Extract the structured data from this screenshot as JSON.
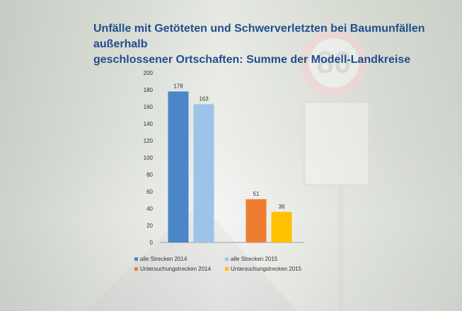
{
  "title": {
    "line1": "Unfälle mit Getöteten und Schwerverletzten bei Baumunfällen außerhalb",
    "line2": "geschlossener Ortschaften: Summe der Modell-Landkreise"
  },
  "sign_text": "80",
  "chart_data": {
    "type": "bar",
    "title": "Unfälle mit Getöteten und Schwerverletzten bei Baumunfällen außerhalb geschlossener Ortschaften: Summe der Modell-Landkreise",
    "ylim": [
      0,
      200
    ],
    "yticks": [
      0,
      20,
      40,
      60,
      80,
      100,
      120,
      140,
      160,
      180,
      200
    ],
    "grid": false,
    "legend_position": "bottom",
    "series": [
      {
        "name": "alle Strecken 2014",
        "value": 178,
        "color": "#4a86c8",
        "group": 0
      },
      {
        "name": "alle Strecken 2015",
        "value": 163,
        "color": "#9ec3e8",
        "group": 0
      },
      {
        "name": "Untersuchungstrecken 2014",
        "value": 51,
        "color": "#ed7d31",
        "group": 1
      },
      {
        "name": "Untersuchungstrecken 2015",
        "value": 36,
        "color": "#ffc000",
        "group": 1
      }
    ]
  }
}
